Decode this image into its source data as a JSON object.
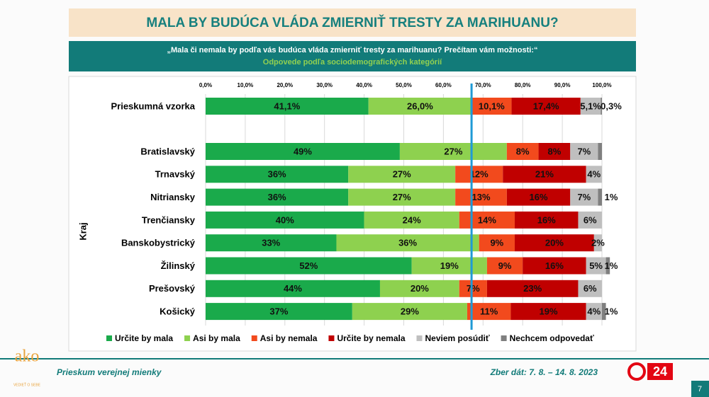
{
  "chart_data": {
    "type": "stacked-bar-horizontal",
    "title": "MALA BY BUDÚCA VLÁDA ZMIERNIŤ TRESTY ZA MARIHUANU?",
    "question": "„Mala či nemala by podľa vás budúca vláda zmierniť tresty za marihuanu? Prečítam vám možnosti:“",
    "subtitle": "Odpovede podľa sociodemografických kategórií",
    "group_label": "Kraj",
    "categories": [
      "Prieskumná vzorka",
      "Bratislavský",
      "Trnavský",
      "Nitriansky",
      "Trenčiansky",
      "Banskobystrický",
      "Žilinský",
      "Prešovský",
      "Košický"
    ],
    "xlim": [
      0,
      100
    ],
    "xticks": [
      {
        "value": 0,
        "label": "0,0%"
      },
      {
        "value": 10,
        "label": "10,0%"
      },
      {
        "value": 20,
        "label": "20,0%"
      },
      {
        "value": 30,
        "label": "30,0%"
      },
      {
        "value": 40,
        "label": "40,0%"
      },
      {
        "value": 50,
        "label": "50,0%"
      },
      {
        "value": 60,
        "label": "60,0%"
      },
      {
        "value": 70,
        "label": "70,0%"
      },
      {
        "value": 80,
        "label": "80,0%"
      },
      {
        "value": 90,
        "label": "90,0%"
      },
      {
        "value": 100,
        "label": "100,0%"
      }
    ],
    "grid": true,
    "reference_line": 67.1,
    "reference_color": "#1e9ad6",
    "series": [
      {
        "name": "Určite by mala",
        "color": "#1aaa4b",
        "values": [
          41.1,
          49,
          36,
          36,
          40,
          33,
          52,
          44,
          37
        ],
        "value_labels": [
          "41,1%",
          "49%",
          "36%",
          "36%",
          "40%",
          "33%",
          "52%",
          "44%",
          "37%"
        ]
      },
      {
        "name": "Asi by mala",
        "color": "#8ed14f",
        "values": [
          26.0,
          27,
          27,
          27,
          24,
          36,
          19,
          20,
          29
        ],
        "value_labels": [
          "26,0%",
          "27%",
          "27%",
          "27%",
          "24%",
          "36%",
          "19%",
          "20%",
          "29%"
        ]
      },
      {
        "name": "Asi by nemala",
        "color": "#f24a1d",
        "values": [
          10.1,
          8,
          12,
          13,
          14,
          9,
          9,
          7,
          11
        ],
        "value_labels": [
          "10,1%",
          "8%",
          "12%",
          "13%",
          "14%",
          "9%",
          "9%",
          "7%",
          "11%"
        ]
      },
      {
        "name": "Určite by nemala",
        "color": "#c00000",
        "values": [
          17.4,
          8,
          21,
          16,
          16,
          20,
          16,
          23,
          19
        ],
        "value_labels": [
          "17,4%",
          "8%",
          "21%",
          "16%",
          "16%",
          "20%",
          "16%",
          "23%",
          "19%"
        ]
      },
      {
        "name": "Neviem posúdiť",
        "color": "#bfbfbf",
        "values": [
          5.1,
          7,
          4,
          7,
          6,
          2,
          5,
          6,
          4
        ],
        "value_labels": [
          "5,1%",
          "7%",
          "4%",
          "7%",
          "6%",
          "2%",
          "5%",
          "6%",
          "4%"
        ]
      },
      {
        "name": "Nechcem odpovedať",
        "color": "#7f7f7f",
        "values": [
          0.3,
          1,
          0,
          1,
          0,
          0,
          1,
          0,
          1
        ],
        "value_labels": [
          "0,3%",
          null,
          null,
          "1%",
          null,
          null,
          "1%",
          null,
          "1%"
        ]
      }
    ]
  },
  "footer": {
    "left": "Prieskum verejnej mienky",
    "right": "Zber dát: 7. 8. – 14. 8. 2023",
    "page": "7",
    "logo": "ako",
    "logo_tagline": "VEDIEŤ O SEBE",
    "tv_logo": "24"
  }
}
